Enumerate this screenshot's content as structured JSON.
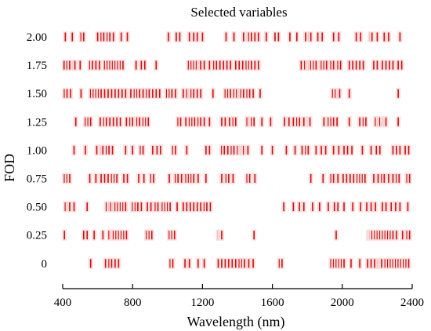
{
  "chart_data": {
    "type": "scatter",
    "title": "Selected variables",
    "xlabel": "Wavelength (nm)",
    "ylabel": "FOD",
    "xlim": [
      400,
      2400
    ],
    "x_ticks": [
      400,
      800,
      1200,
      1600,
      2000,
      2400
    ],
    "x_tick_labels": [
      "400",
      "800",
      "1200",
      "1600",
      "2000",
      "2400"
    ],
    "grid": false,
    "legend": "none",
    "mark_color": "#cc1111",
    "categories": [
      "2.00",
      "1.75",
      "1.50",
      "1.25",
      "1.00",
      "0.75",
      "0.50",
      "0.25",
      "0"
    ],
    "series": [
      {
        "category": "2.00",
        "wavelengths": [
          415,
          455,
          505,
          520,
          600,
          620,
          635,
          655,
          670,
          690,
          735,
          770,
          1005,
          1050,
          1070,
          1125,
          1150,
          1170,
          1200,
          1335,
          1380,
          1435,
          1455,
          1465,
          1480,
          1500,
          1520,
          1565,
          1615,
          1635,
          1700,
          1740,
          1790,
          1810,
          1820,
          1860,
          1885,
          1950,
          1980,
          2080,
          2105,
          2160,
          2170,
          2200,
          2240,
          2265,
          2330
        ]
      },
      {
        "category": "1.75",
        "wavelengths": [
          408,
          425,
          440,
          460,
          470,
          500,
          555,
          570,
          590,
          610,
          640,
          655,
          670,
          685,
          700,
          715,
          730,
          745,
          820,
          850,
          870,
          935,
          1120,
          1135,
          1150,
          1165,
          1180,
          1190,
          1210,
          1240,
          1265,
          1280,
          1300,
          1320,
          1340,
          1360,
          1390,
          1410,
          1430,
          1450,
          1465,
          1480,
          1500,
          1520,
          1765,
          1785,
          1800,
          1810,
          1820,
          1835,
          1850,
          1870,
          1880,
          1895,
          1910,
          1935,
          1950,
          1975,
          1990,
          2040,
          2060,
          2080,
          2100,
          2120,
          2180,
          2200,
          2230,
          2250,
          2270,
          2290,
          2320,
          2340
        ]
      },
      {
        "category": "1.50",
        "wavelengths": [
          410,
          425,
          445,
          505,
          560,
          575,
          590,
          605,
          620,
          640,
          660,
          680,
          700,
          720,
          740,
          760,
          790,
          810,
          825,
          840,
          860,
          880,
          895,
          915,
          935,
          955,
          995,
          1010,
          1025,
          1045,
          1090,
          1110,
          1125,
          1135,
          1150,
          1170,
          1190,
          1260,
          1330,
          1345,
          1360,
          1380,
          1395,
          1410,
          1420,
          1435,
          1455,
          1470,
          1490,
          1530,
          1945,
          1960,
          1975,
          1985,
          2040,
          2320
        ]
      },
      {
        "category": "1.25",
        "wavelengths": [
          475,
          530,
          545,
          560,
          615,
          635,
          650,
          670,
          690,
          710,
          730,
          765,
          785,
          800,
          825,
          840,
          860,
          875,
          890,
          1060,
          1075,
          1105,
          1125,
          1140,
          1155,
          1175,
          1190,
          1210,
          1240,
          1310,
          1330,
          1355,
          1375,
          1390,
          1455,
          1470,
          1480,
          1495,
          1540,
          1590,
          1670,
          1695,
          1720,
          1740,
          1755,
          1780,
          1805,
          1815,
          1895,
          1920,
          1935,
          1950,
          1970,
          2040,
          2100,
          2120,
          2135,
          2190,
          2205,
          2215,
          2230,
          2240,
          2250,
          2320
        ]
      },
      {
        "category": "1.00",
        "wavelengths": [
          465,
          530,
          595,
          620,
          630,
          650,
          665,
          685,
          760,
          800,
          845,
          860,
          915,
          940,
          960,
          1030,
          1045,
          1110,
          1220,
          1240,
          1310,
          1325,
          1345,
          1365,
          1380,
          1400,
          1415,
          1425,
          1435,
          1450,
          1460,
          1540,
          1600,
          1680,
          1730,
          1770,
          1790,
          1805,
          1850,
          1880,
          1905,
          1950,
          1980,
          2010,
          2030,
          2055,
          2115,
          2165,
          2195,
          2215,
          2290,
          2310,
          2330,
          2360,
          2380
        ]
      },
      {
        "category": "0.75",
        "wavelengths": [
          410,
          425,
          440,
          555,
          590,
          620,
          640,
          660,
          680,
          695,
          710,
          750,
          770,
          835,
          865,
          905,
          920,
          1010,
          1045,
          1060,
          1080,
          1105,
          1120,
          1135,
          1150,
          1175,
          1220,
          1310,
          1335,
          1350,
          1375,
          1455,
          1470,
          1500,
          1820,
          1890,
          1935,
          1950,
          1975,
          2005,
          2025,
          2045,
          2065,
          2085,
          2100,
          2115,
          2130,
          2180,
          2205,
          2225,
          2240,
          2265,
          2290,
          2310,
          2325,
          2370,
          2385
        ]
      },
      {
        "category": "0.50",
        "wavelengths": [
          415,
          430,
          440,
          465,
          540,
          650,
          665,
          675,
          690,
          700,
          715,
          730,
          745,
          760,
          800,
          815,
          830,
          850,
          885,
          905,
          930,
          945,
          970,
          985,
          1000,
          1015,
          1055,
          1090,
          1110,
          1130,
          1150,
          1170,
          1190,
          1210,
          1225,
          1245,
          1665,
          1720,
          1755,
          1780,
          1830,
          1870,
          1920,
          1955,
          1975,
          2010,
          2060,
          2105,
          2140,
          2165,
          2190,
          2230,
          2250,
          2280,
          2305,
          2330,
          2375
        ]
      },
      {
        "category": "0.25",
        "wavelengths": [
          410,
          520,
          540,
          580,
          630,
          665,
          680,
          690,
          705,
          720,
          735,
          750,
          765,
          880,
          895,
          910,
          1010,
          1025,
          1040,
          1290,
          1300,
          1310,
          1495,
          1965,
          2150,
          2160,
          2170,
          2185,
          2200,
          2215,
          2230,
          2245,
          2260,
          2275,
          2290,
          2310,
          2345,
          2370,
          2385
        ]
      },
      {
        "category": "0",
        "wavelengths": [
          560,
          645,
          665,
          680,
          700,
          720,
          1015,
          1030,
          1100,
          1125,
          1175,
          1210,
          1290,
          1310,
          1330,
          1350,
          1370,
          1390,
          1410,
          1425,
          1440,
          1465,
          1490,
          1640,
          1655,
          1935,
          1950,
          1965,
          1980,
          1995,
          2010,
          2050,
          2100,
          2145,
          2165,
          2185,
          2205,
          2215,
          2225,
          2245,
          2260,
          2275,
          2290,
          2305,
          2320,
          2335,
          2350,
          2365,
          2380
        ]
      }
    ]
  }
}
